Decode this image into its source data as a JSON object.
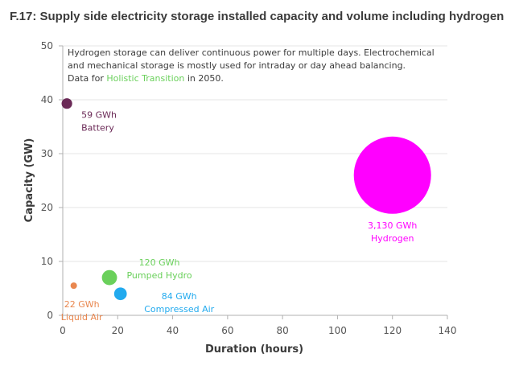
{
  "title": "F.17: Supply side electricity storage installed capacity and volume including hydrogen",
  "chart_data": {
    "type": "scatter",
    "subtype": "bubble",
    "title": "F.17: Supply side electricity storage installed capacity and volume including hydrogen",
    "xlabel": "Duration (hours)",
    "ylabel": "Capacity (GW)",
    "xlim": [
      0,
      140
    ],
    "ylim": [
      0,
      50
    ],
    "xticks": [
      0,
      20,
      40,
      60,
      80,
      100,
      120,
      140
    ],
    "yticks": [
      0,
      10,
      20,
      30,
      40,
      50
    ],
    "grid": "horizontal",
    "annotation": {
      "line1": "Hydrogen storage can deliver continuous power for multiple days. Electrochemical",
      "line2": "and mechanical storage is mostly used for intraday or day ahead balancing.",
      "line3_prefix": "Data for ",
      "line3_link": "Holistic Transition",
      "line3_suffix": " in 2050.",
      "link_color": "#6ad05b"
    },
    "points": [
      {
        "name": "Battery",
        "volume": "59 GWh",
        "volume_gwh": 59,
        "x": 1.5,
        "y": 39.3,
        "color": "#6b2a57"
      },
      {
        "name": "Hydrogen",
        "volume": "3,130 GWh",
        "volume_gwh": 3130,
        "x": 120,
        "y": 26,
        "color": "#ff00ff"
      },
      {
        "name": "Pumped Hydro",
        "volume": "120 GWh",
        "volume_gwh": 120,
        "x": 17,
        "y": 7,
        "color": "#6ad05b"
      },
      {
        "name": "Compressed Air",
        "volume": "84 GWh",
        "volume_gwh": 84,
        "x": 21,
        "y": 4,
        "color": "#22aaee"
      },
      {
        "name": "Liquid Air",
        "volume": "22 GWh",
        "volume_gwh": 22,
        "x": 4,
        "y": 5.5,
        "color": "#e9874f"
      }
    ]
  }
}
